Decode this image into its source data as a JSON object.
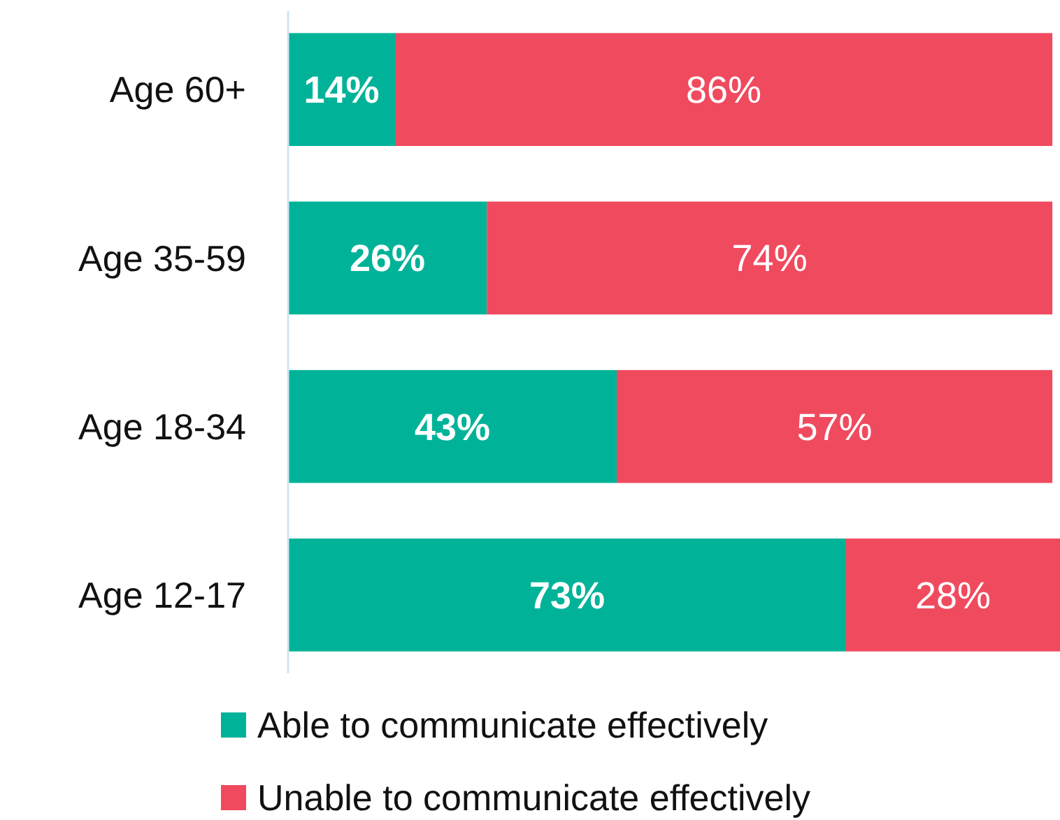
{
  "chart_data": {
    "type": "bar",
    "orientation": "horizontal",
    "stacked": true,
    "legend": "bottom",
    "categories": [
      "Age 60+",
      "Age 35-59",
      "Age 18-34",
      "Age 12-17"
    ],
    "series": [
      {
        "name": "Able to communicate effectively",
        "color": "#00b398",
        "values": [
          14,
          26,
          43,
          73
        ],
        "value_labels": [
          "14%",
          "26%",
          "43%",
          "73%"
        ]
      },
      {
        "name": "Unable to communicate effectively",
        "color": "#f04a5f",
        "values": [
          86,
          74,
          57,
          28
        ],
        "value_labels": [
          "86%",
          "74%",
          "57%",
          "28%"
        ]
      }
    ]
  }
}
